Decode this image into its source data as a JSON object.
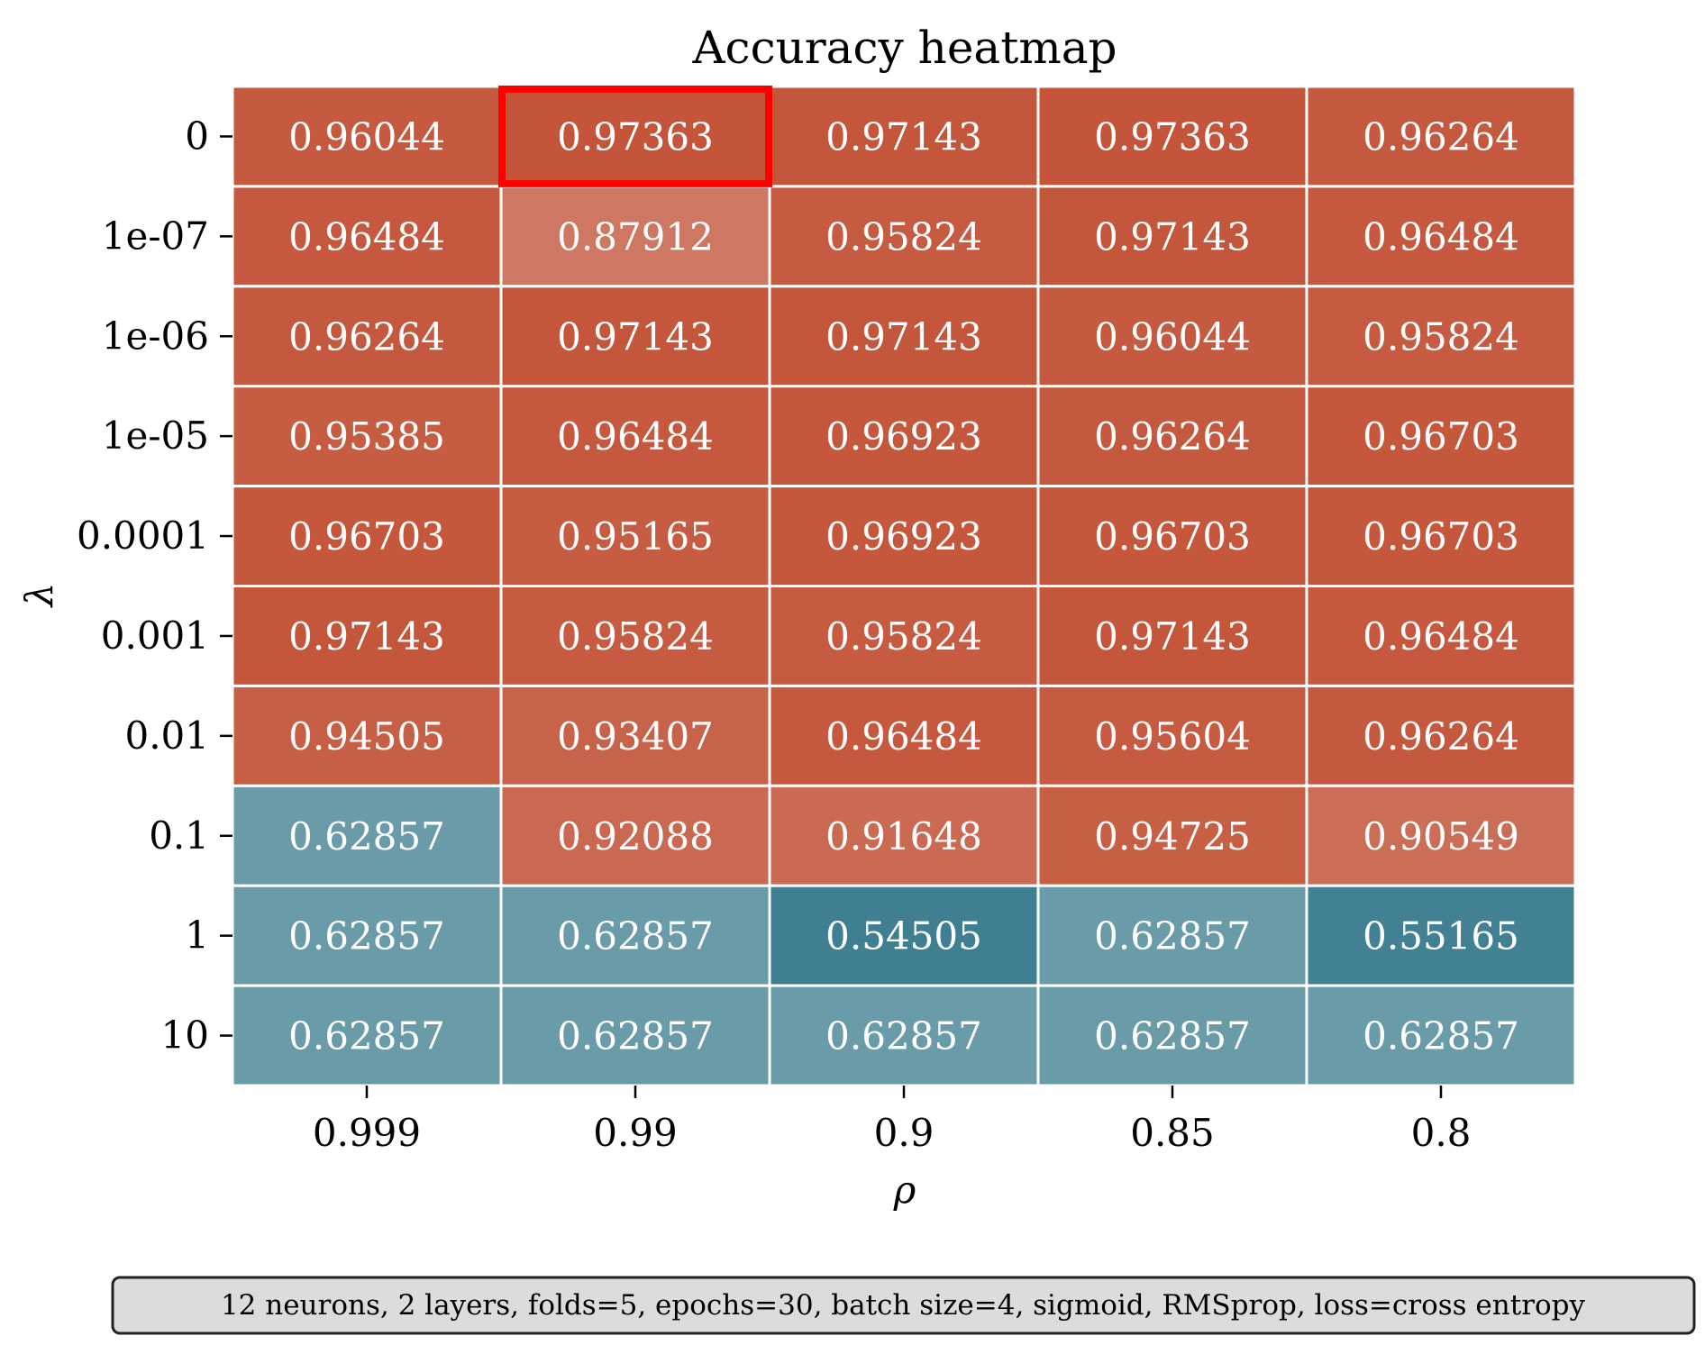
{
  "chart_data": {
    "type": "heatmap",
    "title": "Accuracy heatmap",
    "xlabel": "ρ",
    "ylabel": "λ",
    "x_categories": [
      "0.999",
      "0.99",
      "0.9",
      "0.85",
      "0.8"
    ],
    "y_categories": [
      "0",
      "1e-07",
      "1e-06",
      "1e-05",
      "0.0001",
      "0.001",
      "0.01",
      "0.1",
      "1",
      "10"
    ],
    "values": [
      [
        0.96044,
        0.97363,
        0.97143,
        0.97363,
        0.96264
      ],
      [
        0.96484,
        0.87912,
        0.95824,
        0.97143,
        0.96484
      ],
      [
        0.96264,
        0.97143,
        0.97143,
        0.96044,
        0.95824
      ],
      [
        0.95385,
        0.96484,
        0.96923,
        0.96264,
        0.96703
      ],
      [
        0.96703,
        0.95165,
        0.96923,
        0.96703,
        0.96703
      ],
      [
        0.97143,
        0.95824,
        0.95824,
        0.97143,
        0.96484
      ],
      [
        0.94505,
        0.93407,
        0.96484,
        0.95604,
        0.96264
      ],
      [
        0.62857,
        0.92088,
        0.91648,
        0.94725,
        0.90549
      ],
      [
        0.62857,
        0.62857,
        0.54505,
        0.62857,
        0.55165
      ],
      [
        0.62857,
        0.62857,
        0.62857,
        0.62857,
        0.62857
      ]
    ],
    "cell_labels": [
      [
        "0.96044",
        "0.97363",
        "0.97143",
        "0.97363",
        "0.96264"
      ],
      [
        "0.96484",
        "0.87912",
        "0.95824",
        "0.97143",
        "0.96484"
      ],
      [
        "0.96264",
        "0.97143",
        "0.97143",
        "0.96044",
        "0.95824"
      ],
      [
        "0.95385",
        "0.96484",
        "0.96923",
        "0.96264",
        "0.96703"
      ],
      [
        "0.96703",
        "0.95165",
        "0.96923",
        "0.96703",
        "0.96703"
      ],
      [
        "0.97143",
        "0.95824",
        "0.95824",
        "0.97143",
        "0.96484"
      ],
      [
        "0.94505",
        "0.93407",
        "0.96484",
        "0.95604",
        "0.96264"
      ],
      [
        "0.62857",
        "0.92088",
        "0.91648",
        "0.94725",
        "0.90549"
      ],
      [
        "0.62857",
        "0.62857",
        "0.54505",
        "0.62857",
        "0.55165"
      ],
      [
        "0.62857",
        "0.62857",
        "0.62857",
        "0.62857",
        "0.62857"
      ]
    ],
    "highlight_cell": {
      "row": 0,
      "col": 1,
      "color": "#ff0000"
    },
    "colors": {
      "high": "#c4553a",
      "low": "#3f7f91",
      "grid": "#ffffff",
      "annotation_text": "#ffffff"
    },
    "colorbar": false,
    "footer": "12 neurons, 2 layers, folds=5, epochs=30, batch size=4, sigmoid, RMSprop, loss=cross entropy"
  }
}
